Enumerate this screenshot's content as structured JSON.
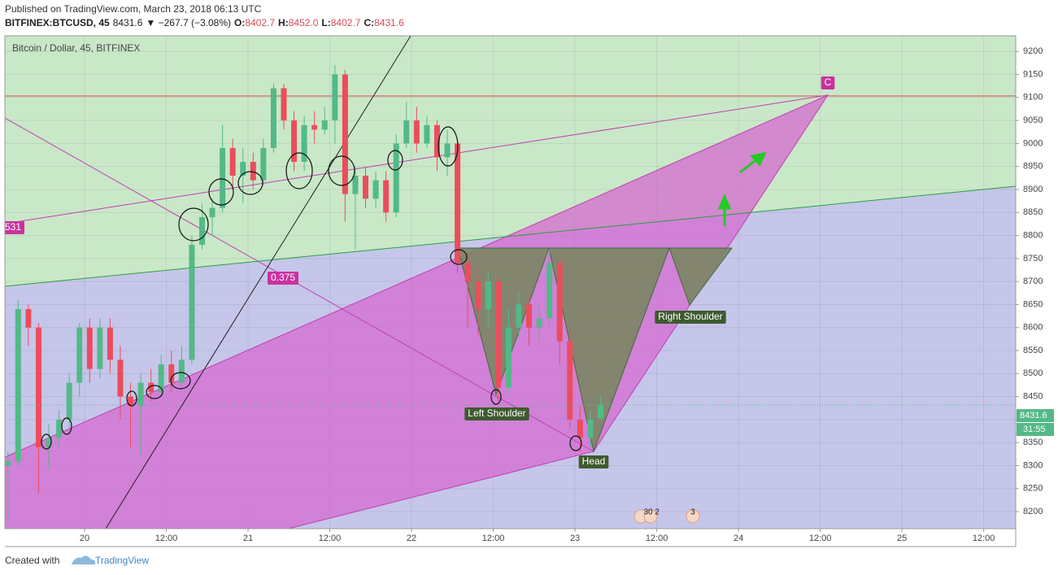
{
  "header": {
    "published": "Published on TradingView.com, March 23, 2018 06:13 UTC",
    "symbol": "BITFINEX:BTCUSD, 45",
    "last": "8431.6",
    "change": "▼ −267.7 (−3.08%)",
    "ohlc": [
      {
        "label": "O:",
        "value": "8402.7"
      },
      {
        "label": "H:",
        "value": "8452.0"
      },
      {
        "label": "L:",
        "value": "8402.7"
      },
      {
        "label": "C:",
        "value": "8431.6"
      }
    ]
  },
  "chart_data": {
    "type": "candlestick",
    "title": "Bitcoin / Dollar, 45, BITFINEX",
    "up_color": "#53b987",
    "down_color": "#eb4d5c",
    "grid": true,
    "x": [
      -11.25,
      -9.75,
      -8.25,
      -6.75,
      -5.25,
      -3.75,
      -2.25,
      -0.75,
      0.75,
      2.25,
      3.75,
      5.25,
      6.75,
      8.25,
      9.75,
      11.25,
      12.75,
      14.25,
      15.75,
      17.25,
      18.75,
      20.25,
      21.75,
      23.25,
      24.75,
      26.25,
      27.75,
      29.25,
      30.75,
      32.25,
      33.75,
      35.25,
      36.75,
      38.25,
      39.75,
      41.25,
      42.75,
      44.25,
      45.75,
      47.25,
      48.75,
      50.25,
      51.75,
      53.25,
      54.75,
      56.25,
      57.75,
      59.25,
      60.75,
      62.25,
      63.75,
      65.25,
      66.75,
      68.25,
      69.75,
      71.25,
      72.75,
      74.25,
      75.75
    ],
    "open": [
      8300,
      8310,
      8640,
      8600,
      8340,
      8360,
      8400,
      8480,
      8600,
      8510,
      8600,
      8530,
      8450,
      8430,
      8480,
      8460,
      8520,
      8480,
      8530,
      8780,
      8840,
      8860,
      8990,
      8930,
      8960,
      8920,
      8990,
      9120,
      9050,
      8960,
      9040,
      9030,
      9050,
      9150,
      8890,
      8930,
      8880,
      8920,
      8850,
      9000,
      9050,
      9000,
      9040,
      8970,
      9000,
      8740,
      8700,
      8640,
      8700,
      8470,
      8600,
      8650,
      8600,
      8620,
      8740,
      8570,
      8400,
      8360,
      8402.7
    ],
    "high": [
      8330,
      8660,
      8650,
      8610,
      8390,
      8420,
      8500,
      8610,
      8620,
      8620,
      8620,
      8560,
      8480,
      8500,
      8510,
      8540,
      8550,
      8560,
      8800,
      8870,
      8880,
      9040,
      9010,
      8990,
      8980,
      9010,
      9130,
      9130,
      9070,
      9060,
      9070,
      9080,
      9170,
      9160,
      8950,
      8950,
      8940,
      8940,
      9020,
      9090,
      9080,
      9060,
      9050,
      9030,
      9010,
      8760,
      8730,
      8720,
      8710,
      8640,
      8680,
      8670,
      8650,
      8770,
      8750,
      8600,
      8430,
      8420,
      8452.0
    ],
    "low": [
      8180,
      8300,
      8560,
      8240,
      8290,
      8340,
      8370,
      8450,
      8480,
      8490,
      8500,
      8400,
      8340,
      8320,
      8440,
      8450,
      8460,
      8470,
      8520,
      8770,
      8800,
      8850,
      8900,
      8870,
      8900,
      8910,
      8980,
      9030,
      8940,
      8940,
      9000,
      9020,
      9000,
      8830,
      8770,
      8860,
      8860,
      8830,
      8840,
      8990,
      8980,
      8990,
      8940,
      8930,
      8720,
      8600,
      8580,
      8600,
      8440,
      8460,
      8580,
      8560,
      8570,
      8600,
      8520,
      8380,
      8330,
      8340,
      8402.7
    ],
    "close": [
      8310,
      8640,
      8600,
      8340,
      8360,
      8400,
      8480,
      8600,
      8510,
      8600,
      8530,
      8450,
      8430,
      8480,
      8460,
      8520,
      8480,
      8530,
      8780,
      8840,
      8860,
      8990,
      8930,
      8960,
      8920,
      8990,
      9120,
      9050,
      8960,
      9040,
      9030,
      9050,
      9150,
      8890,
      8930,
      8880,
      8920,
      8850,
      9000,
      9050,
      9000,
      9040,
      8970,
      9000,
      8740,
      8700,
      8640,
      8700,
      8470,
      8600,
      8650,
      8600,
      8620,
      8740,
      8570,
      8400,
      8360,
      8400,
      8431.6
    ],
    "xlim": [
      -11.7,
      136.7
    ],
    "ylim": [
      8163,
      9234
    ],
    "xticks": [
      {
        "value": 0,
        "label": "20"
      },
      {
        "value": 12,
        "label": "12:00"
      },
      {
        "value": 24,
        "label": "21"
      },
      {
        "value": 36,
        "label": "12:00"
      },
      {
        "value": 48,
        "label": "22"
      },
      {
        "value": 60,
        "label": "12:00"
      },
      {
        "value": 72,
        "label": "23"
      },
      {
        "value": 84,
        "label": "12:00"
      },
      {
        "value": 96,
        "label": "24"
      },
      {
        "value": 108,
        "label": "12:00"
      },
      {
        "value": 120,
        "label": "25"
      },
      {
        "value": 132,
        "label": "12:00"
      }
    ],
    "yticks": [
      8200,
      8250,
      8300,
      8350,
      8400,
      8450,
      8500,
      8550,
      8600,
      8650,
      8700,
      8750,
      8800,
      8850,
      8900,
      8950,
      9000,
      9050,
      9100,
      9150,
      9200
    ],
    "last_price_label": "8431.6",
    "countdown": "31:55",
    "annotations": [
      "531",
      "0.375",
      "C",
      "Left Shoulder",
      "Head",
      "Right Shoulder"
    ],
    "events": [
      "30",
      "2",
      "3"
    ]
  },
  "footer": {
    "created_with": "Created with",
    "brand": "TradingView"
  }
}
